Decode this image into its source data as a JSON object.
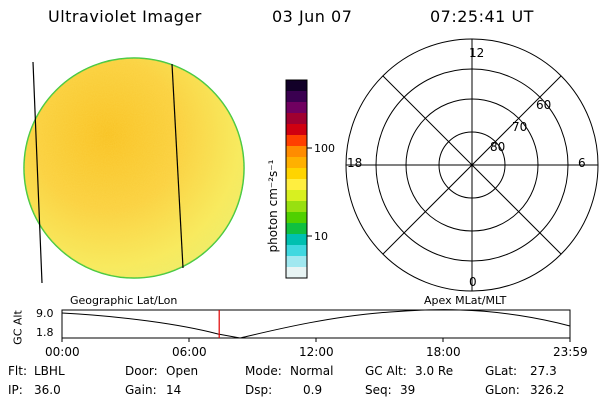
{
  "header": {
    "instrument": "Ultraviolet Imager",
    "date": "03 Jun 07",
    "time": "07:25:41 UT"
  },
  "colorbar": {
    "unit_label": "photon cm⁻²s⁻¹",
    "ticks": [
      "100",
      "10"
    ],
    "colors": [
      "#120028",
      "#3a0050",
      "#700060",
      "#a00030",
      "#d00010",
      "#ff4000",
      "#ff8c00",
      "#ffb000",
      "#ffd400",
      "#ffee40",
      "#d8f020",
      "#98e010",
      "#50d000",
      "#10c040",
      "#00c0b0",
      "#40d8e0",
      "#a0e8f0",
      "#e8f4f4"
    ]
  },
  "polar_plot": {
    "hour_labels": [
      "12",
      "18",
      "6",
      "0"
    ],
    "lat_labels": [
      "60",
      "70",
      "80"
    ]
  },
  "timeline": {
    "axis_label": "GC Alt",
    "y_ticks": [
      "9.0",
      "1.8"
    ],
    "left_title": "Geographic Lat/Lon",
    "right_title": "Apex MLat/MLT",
    "x_ticks": [
      "00:00",
      "06:00",
      "12:00",
      "18:00",
      "23:59"
    ],
    "current_time_fraction": 0.3095
  },
  "status": {
    "row1": [
      {
        "label": "Flt:",
        "value": "LBHL"
      },
      {
        "label": "Door:",
        "value": "Open"
      },
      {
        "label": "Mode:",
        "value": "Normal"
      },
      {
        "label": "GC Alt:",
        "value": "3.0 Re"
      },
      {
        "label": "GLat:",
        "value": "27.3"
      }
    ],
    "row2": [
      {
        "label": "IP:",
        "value": "36.0"
      },
      {
        "label": "Gain:",
        "value": "14"
      },
      {
        "label": "Dsp:",
        "value": "0.9"
      },
      {
        "label": "Seq:",
        "value": "39"
      },
      {
        "label": "GLon:",
        "value": "326.2"
      }
    ]
  },
  "colors": {
    "earth_disk_base": "#f8dc3c",
    "earth_disk_edge": "#40c840",
    "marker": "#e00000"
  }
}
